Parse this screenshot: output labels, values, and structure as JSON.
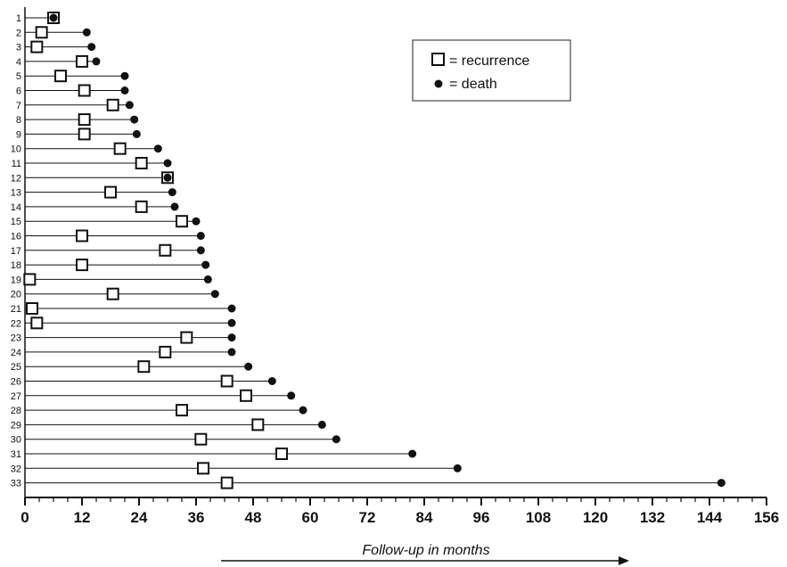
{
  "chart_data": {
    "type": "scatter",
    "title": "",
    "xlabel": "Follow-up in months",
    "ylabel": "",
    "xlim": [
      0,
      156
    ],
    "x_ticks": [
      0,
      12,
      24,
      36,
      48,
      60,
      72,
      84,
      96,
      108,
      120,
      132,
      144,
      156
    ],
    "grid": false,
    "legend": {
      "position": "top-right",
      "entries": [
        {
          "marker": "open-square",
          "label": "= recurrence"
        },
        {
          "marker": "filled-circle",
          "label": "= death"
        }
      ]
    },
    "patients": [
      {
        "id": "1",
        "recurrence": 6,
        "death": 6
      },
      {
        "id": "2",
        "recurrence": 3.5,
        "death": 13
      },
      {
        "id": "3",
        "recurrence": 2.5,
        "death": 14
      },
      {
        "id": "4",
        "recurrence": 12,
        "death": 15
      },
      {
        "id": "5",
        "recurrence": 7.5,
        "death": 21
      },
      {
        "id": "6",
        "recurrence": 12.5,
        "death": 21
      },
      {
        "id": "7",
        "recurrence": 18.5,
        "death": 22
      },
      {
        "id": "8",
        "recurrence": 12.5,
        "death": 23
      },
      {
        "id": "9",
        "recurrence": 12.5,
        "death": 23.5
      },
      {
        "id": "10",
        "recurrence": 20,
        "death": 28
      },
      {
        "id": "11",
        "recurrence": 24.5,
        "death": 30
      },
      {
        "id": "12",
        "recurrence": 30,
        "death": 30
      },
      {
        "id": "13",
        "recurrence": 18,
        "death": 31
      },
      {
        "id": "14",
        "recurrence": 24.5,
        "death": 31.5
      },
      {
        "id": "15",
        "recurrence": 33,
        "death": 36
      },
      {
        "id": "16",
        "recurrence": 12,
        "death": 37
      },
      {
        "id": "17",
        "recurrence": 29.5,
        "death": 37
      },
      {
        "id": "18",
        "recurrence": 12,
        "death": 38
      },
      {
        "id": "19",
        "recurrence": 1,
        "death": 38.5
      },
      {
        "id": "20",
        "recurrence": 18.5,
        "death": 40
      },
      {
        "id": "21",
        "recurrence": 1.5,
        "death": 43.5
      },
      {
        "id": "22",
        "recurrence": 2.5,
        "death": 43.5
      },
      {
        "id": "23",
        "recurrence": 34,
        "death": 43.5
      },
      {
        "id": "24",
        "recurrence": 29.5,
        "death": 43.5
      },
      {
        "id": "25",
        "recurrence": 25,
        "death": 47
      },
      {
        "id": "26",
        "recurrence": 42.5,
        "death": 52
      },
      {
        "id": "27",
        "recurrence": 46.5,
        "death": 56
      },
      {
        "id": "28",
        "recurrence": 33,
        "death": 58.5
      },
      {
        "id": "29",
        "recurrence": 49,
        "death": 62.5
      },
      {
        "id": "30",
        "recurrence": 37,
        "death": 65.5
      },
      {
        "id": "31",
        "recurrence": 54,
        "death": 81.5
      },
      {
        "id": "32",
        "recurrence": 37.5,
        "death": 91
      },
      {
        "id": "33",
        "recurrence": 42.5,
        "death": 146.5
      }
    ]
  }
}
